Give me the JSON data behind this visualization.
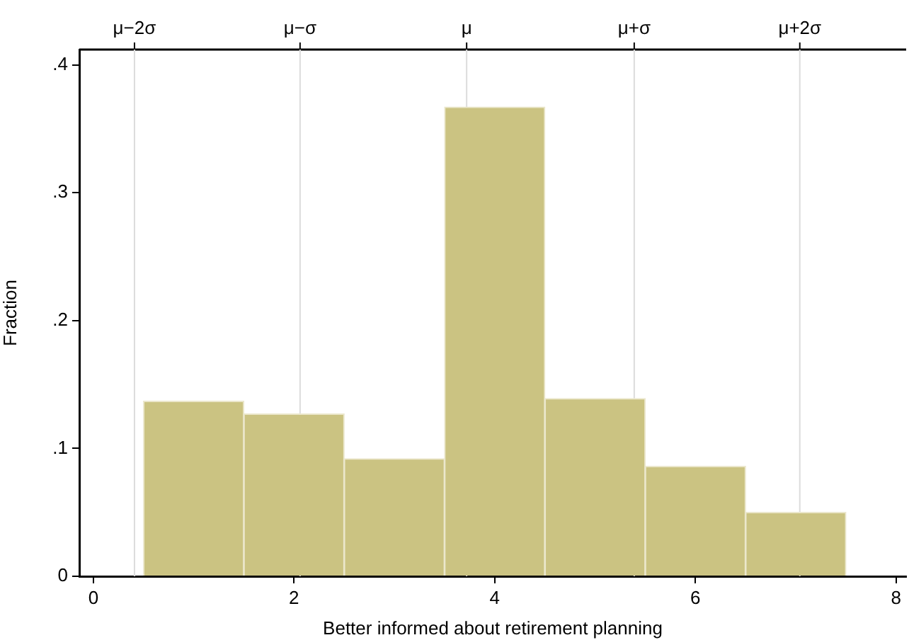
{
  "chart_data": {
    "type": "histogram",
    "xlabel": "Better informed about retirement planning",
    "ylabel": "Fraction",
    "bins": [
      0.5,
      1.5,
      2.5,
      3.5,
      4.5,
      5.5,
      6.5,
      7.5
    ],
    "values": [
      0.137,
      0.127,
      0.092,
      0.367,
      0.139,
      0.086,
      0.05
    ],
    "color": "#cbc382",
    "xlim": [
      -0.14,
      8.1
    ],
    "xticks": [
      0,
      2,
      4,
      6,
      8
    ],
    "ylim": [
      0,
      0.412
    ],
    "yticks": [
      {
        "value": 0,
        "label": "0"
      },
      {
        "value": 0.1,
        "label": ".1"
      },
      {
        "value": 0.2,
        "label": ".2"
      },
      {
        "value": 0.3,
        "label": ".3"
      },
      {
        "value": 0.4,
        "label": ".4"
      }
    ],
    "ref_lines": [
      {
        "axis": "x",
        "value": 0.41,
        "label": "μ−2σ",
        "color": "#dcdcdc"
      },
      {
        "axis": "x",
        "value": 2.06,
        "label": "μ−σ",
        "color": "#dcdcdc"
      },
      {
        "axis": "x",
        "value": 3.72,
        "label": "μ",
        "color": "#dcdcdc"
      },
      {
        "axis": "x",
        "value": 5.39,
        "label": "μ+σ",
        "color": "#dcdcdc"
      },
      {
        "axis": "x",
        "value": 7.04,
        "label": "μ+2σ",
        "color": "#dcdcdc"
      }
    ]
  }
}
